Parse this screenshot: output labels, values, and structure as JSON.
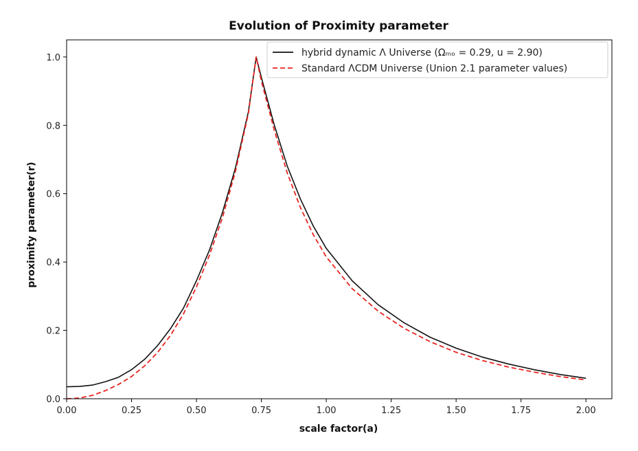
{
  "chart_data": {
    "type": "line",
    "title": "Evolution of Proximity parameter",
    "xlabel": "scale factor(a)",
    "ylabel": "proximity parameter(r)",
    "xlim": [
      0.0,
      2.1
    ],
    "ylim": [
      0.0,
      1.05
    ],
    "xticks": [
      0.0,
      0.25,
      0.5,
      0.75,
      1.0,
      1.25,
      1.5,
      1.75,
      2.0
    ],
    "xtick_labels": [
      "0.00",
      "0.25",
      "0.50",
      "0.75",
      "1.00",
      "1.25",
      "1.50",
      "1.75",
      "2.00"
    ],
    "yticks": [
      0.0,
      0.2,
      0.4,
      0.6,
      0.8,
      1.0
    ],
    "ytick_labels": [
      "0.0",
      "0.2",
      "0.4",
      "0.6",
      "0.8",
      "1.0"
    ],
    "grid": false,
    "legend_position": "top-right",
    "series": [
      {
        "name": "hybrid dynamic Λ Universe (Ωₘₒ = 0.29, u = 2.90)",
        "color": "#111111",
        "style": "solid",
        "x": [
          0.0,
          0.05,
          0.1,
          0.15,
          0.2,
          0.25,
          0.3,
          0.35,
          0.4,
          0.45,
          0.5,
          0.55,
          0.6,
          0.65,
          0.7,
          0.73,
          0.75,
          0.8,
          0.85,
          0.9,
          0.95,
          1.0,
          1.1,
          1.2,
          1.3,
          1.4,
          1.5,
          1.6,
          1.7,
          1.8,
          1.9,
          2.0
        ],
        "y": [
          0.035,
          0.036,
          0.04,
          0.05,
          0.063,
          0.085,
          0.115,
          0.155,
          0.205,
          0.265,
          0.345,
          0.435,
          0.545,
          0.675,
          0.84,
          1.0,
          0.94,
          0.8,
          0.68,
          0.585,
          0.505,
          0.44,
          0.345,
          0.275,
          0.222,
          0.18,
          0.148,
          0.122,
          0.102,
          0.085,
          0.071,
          0.06
        ]
      },
      {
        "name": "Standard ΛCDM Universe (Union 2.1 parameter values)",
        "color": "#e8231f",
        "style": "dashed",
        "x": [
          0.0,
          0.05,
          0.1,
          0.15,
          0.2,
          0.25,
          0.3,
          0.35,
          0.4,
          0.45,
          0.5,
          0.55,
          0.6,
          0.65,
          0.7,
          0.73,
          0.75,
          0.8,
          0.85,
          0.9,
          0.95,
          1.0,
          1.1,
          1.2,
          1.3,
          1.4,
          1.5,
          1.6,
          1.7,
          1.8,
          1.9,
          2.0
        ],
        "y": [
          0.0,
          0.002,
          0.01,
          0.024,
          0.042,
          0.065,
          0.096,
          0.135,
          0.185,
          0.248,
          0.327,
          0.42,
          0.53,
          0.665,
          0.835,
          1.0,
          0.93,
          0.785,
          0.66,
          0.56,
          0.48,
          0.415,
          0.322,
          0.256,
          0.206,
          0.167,
          0.136,
          0.112,
          0.093,
          0.078,
          0.065,
          0.055
        ]
      }
    ]
  }
}
